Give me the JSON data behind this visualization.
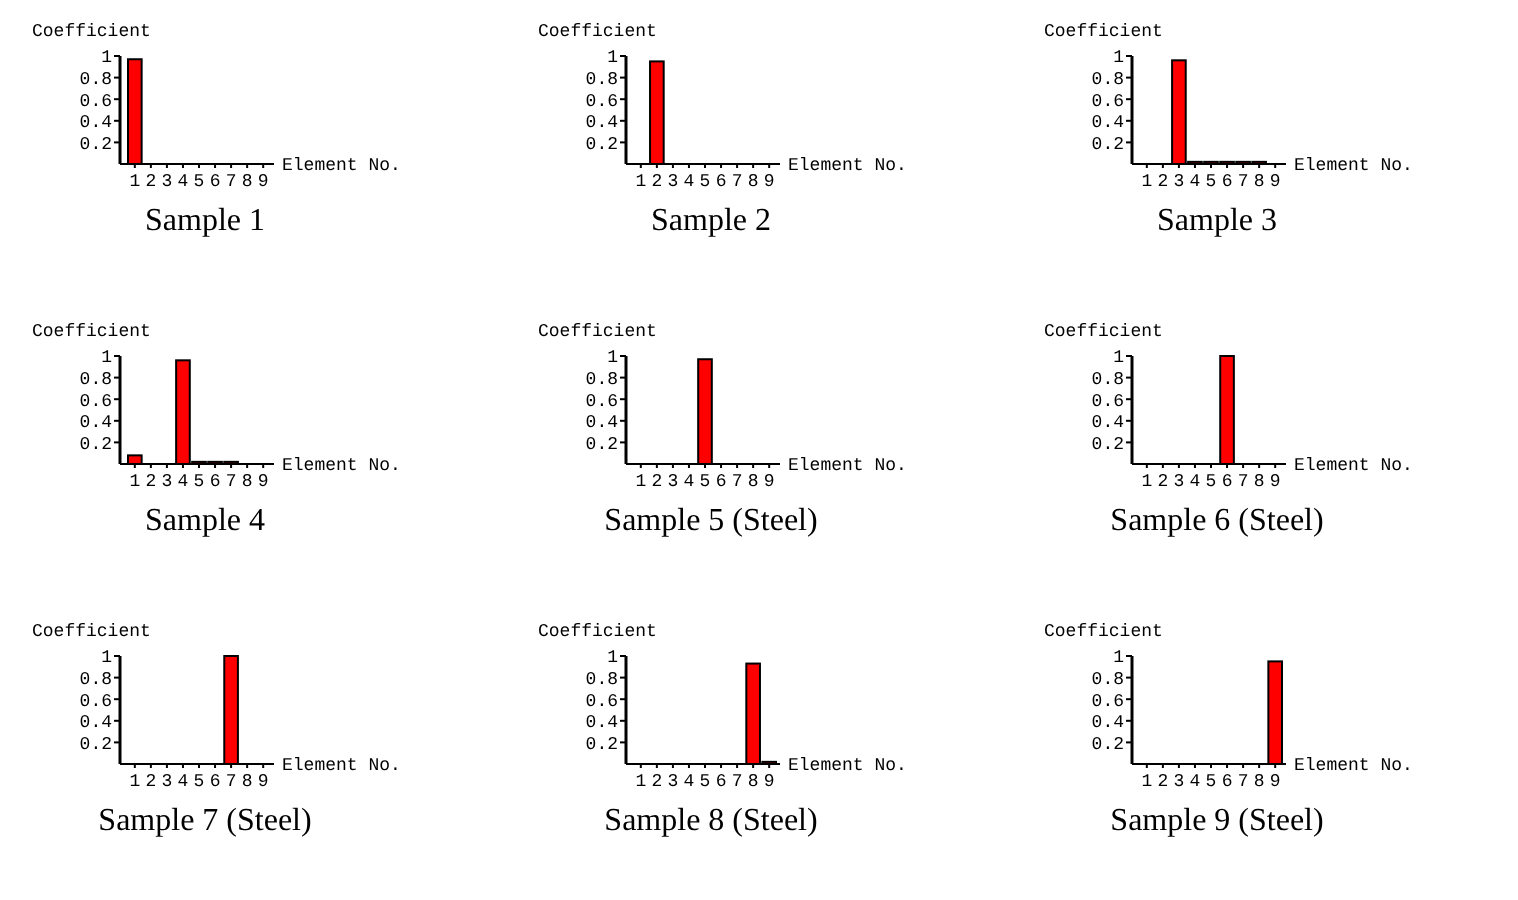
{
  "chart_data": [
    {
      "type": "bar",
      "title": "Sample 1",
      "xlabel": "Element No.",
      "ylabel": "Coefficient",
      "categories": [
        "1",
        "2",
        "3",
        "4",
        "5",
        "6",
        "7",
        "8",
        "9"
      ],
      "values": [
        0.97,
        0,
        0,
        0,
        0,
        0,
        0,
        0,
        0
      ],
      "color": "#ff0000",
      "ylim": [
        0,
        1
      ],
      "yticks": [
        0.2,
        0.4,
        0.6,
        0.8,
        1
      ],
      "grid": false
    },
    {
      "type": "bar",
      "title": "Sample 2",
      "xlabel": "Element No.",
      "ylabel": "Coefficient",
      "categories": [
        "1",
        "2",
        "3",
        "4",
        "5",
        "6",
        "7",
        "8",
        "9"
      ],
      "values": [
        0,
        0.95,
        0,
        0,
        0,
        0,
        0,
        0,
        0
      ],
      "color": "#ff0000",
      "ylim": [
        0,
        1
      ],
      "yticks": [
        0.2,
        0.4,
        0.6,
        0.8,
        1
      ],
      "grid": false
    },
    {
      "type": "bar",
      "title": "Sample 3",
      "xlabel": "Element No.",
      "ylabel": "Coefficient",
      "categories": [
        "1",
        "2",
        "3",
        "4",
        "5",
        "6",
        "7",
        "8",
        "9"
      ],
      "values": [
        0,
        0,
        0.96,
        0.02,
        0.02,
        0.02,
        0.02,
        0.02,
        0
      ],
      "color": "#ff0000",
      "ylim": [
        0,
        1
      ],
      "yticks": [
        0.2,
        0.4,
        0.6,
        0.8,
        1
      ],
      "grid": false
    },
    {
      "type": "bar",
      "title": "Sample 4",
      "xlabel": "Element No.",
      "ylabel": "Coefficient",
      "categories": [
        "1",
        "2",
        "3",
        "4",
        "5",
        "6",
        "7",
        "8",
        "9"
      ],
      "values": [
        0.08,
        0,
        0,
        0.96,
        0.02,
        0.02,
        0.02,
        0,
        0
      ],
      "color": "#ff0000",
      "ylim": [
        0,
        1
      ],
      "yticks": [
        0.2,
        0.4,
        0.6,
        0.8,
        1
      ],
      "grid": false
    },
    {
      "type": "bar",
      "title": "Sample 5 (Steel)",
      "xlabel": "Element No.",
      "ylabel": "Coefficient",
      "categories": [
        "1",
        "2",
        "3",
        "4",
        "5",
        "6",
        "7",
        "8",
        "9"
      ],
      "values": [
        0,
        0,
        0,
        0,
        0.97,
        0,
        0,
        0,
        0
      ],
      "color": "#ff0000",
      "ylim": [
        0,
        1
      ],
      "yticks": [
        0.2,
        0.4,
        0.6,
        0.8,
        1
      ],
      "grid": false
    },
    {
      "type": "bar",
      "title": "Sample 6 (Steel)",
      "xlabel": "Element No.",
      "ylabel": "Coefficient",
      "categories": [
        "1",
        "2",
        "3",
        "4",
        "5",
        "6",
        "7",
        "8",
        "9"
      ],
      "values": [
        0,
        0,
        0,
        0,
        0,
        1,
        0,
        0,
        0
      ],
      "color": "#ff0000",
      "ylim": [
        0,
        1
      ],
      "yticks": [
        0.2,
        0.4,
        0.6,
        0.8,
        1
      ],
      "grid": false
    },
    {
      "type": "bar",
      "title": "Sample 7 (Steel)",
      "xlabel": "Element No.",
      "ylabel": "Coefficient",
      "categories": [
        "1",
        "2",
        "3",
        "4",
        "5",
        "6",
        "7",
        "8",
        "9"
      ],
      "values": [
        0,
        0,
        0,
        0,
        0,
        0,
        1,
        0,
        0
      ],
      "color": "#ff0000",
      "ylim": [
        0,
        1
      ],
      "yticks": [
        0.2,
        0.4,
        0.6,
        0.8,
        1
      ],
      "grid": false
    },
    {
      "type": "bar",
      "title": "Sample 8 (Steel)",
      "xlabel": "Element No.",
      "ylabel": "Coefficient",
      "categories": [
        "1",
        "2",
        "3",
        "4",
        "5",
        "6",
        "7",
        "8",
        "9"
      ],
      "values": [
        0,
        0,
        0,
        0,
        0,
        0,
        0,
        0.93,
        0.02
      ],
      "color": "#ff0000",
      "ylim": [
        0,
        1
      ],
      "yticks": [
        0.2,
        0.4,
        0.6,
        0.8,
        1
      ],
      "grid": false
    },
    {
      "type": "bar",
      "title": "Sample 9 (Steel)",
      "xlabel": "Element No.",
      "ylabel": "Coefficient",
      "categories": [
        "1",
        "2",
        "3",
        "4",
        "5",
        "6",
        "7",
        "8",
        "9"
      ],
      "values": [
        0,
        0,
        0,
        0,
        0,
        0,
        0,
        0,
        0.95
      ],
      "color": "#ff0000",
      "ylim": [
        0,
        1
      ],
      "yticks": [
        0.2,
        0.4,
        0.6,
        0.8,
        1
      ],
      "grid": false
    }
  ]
}
